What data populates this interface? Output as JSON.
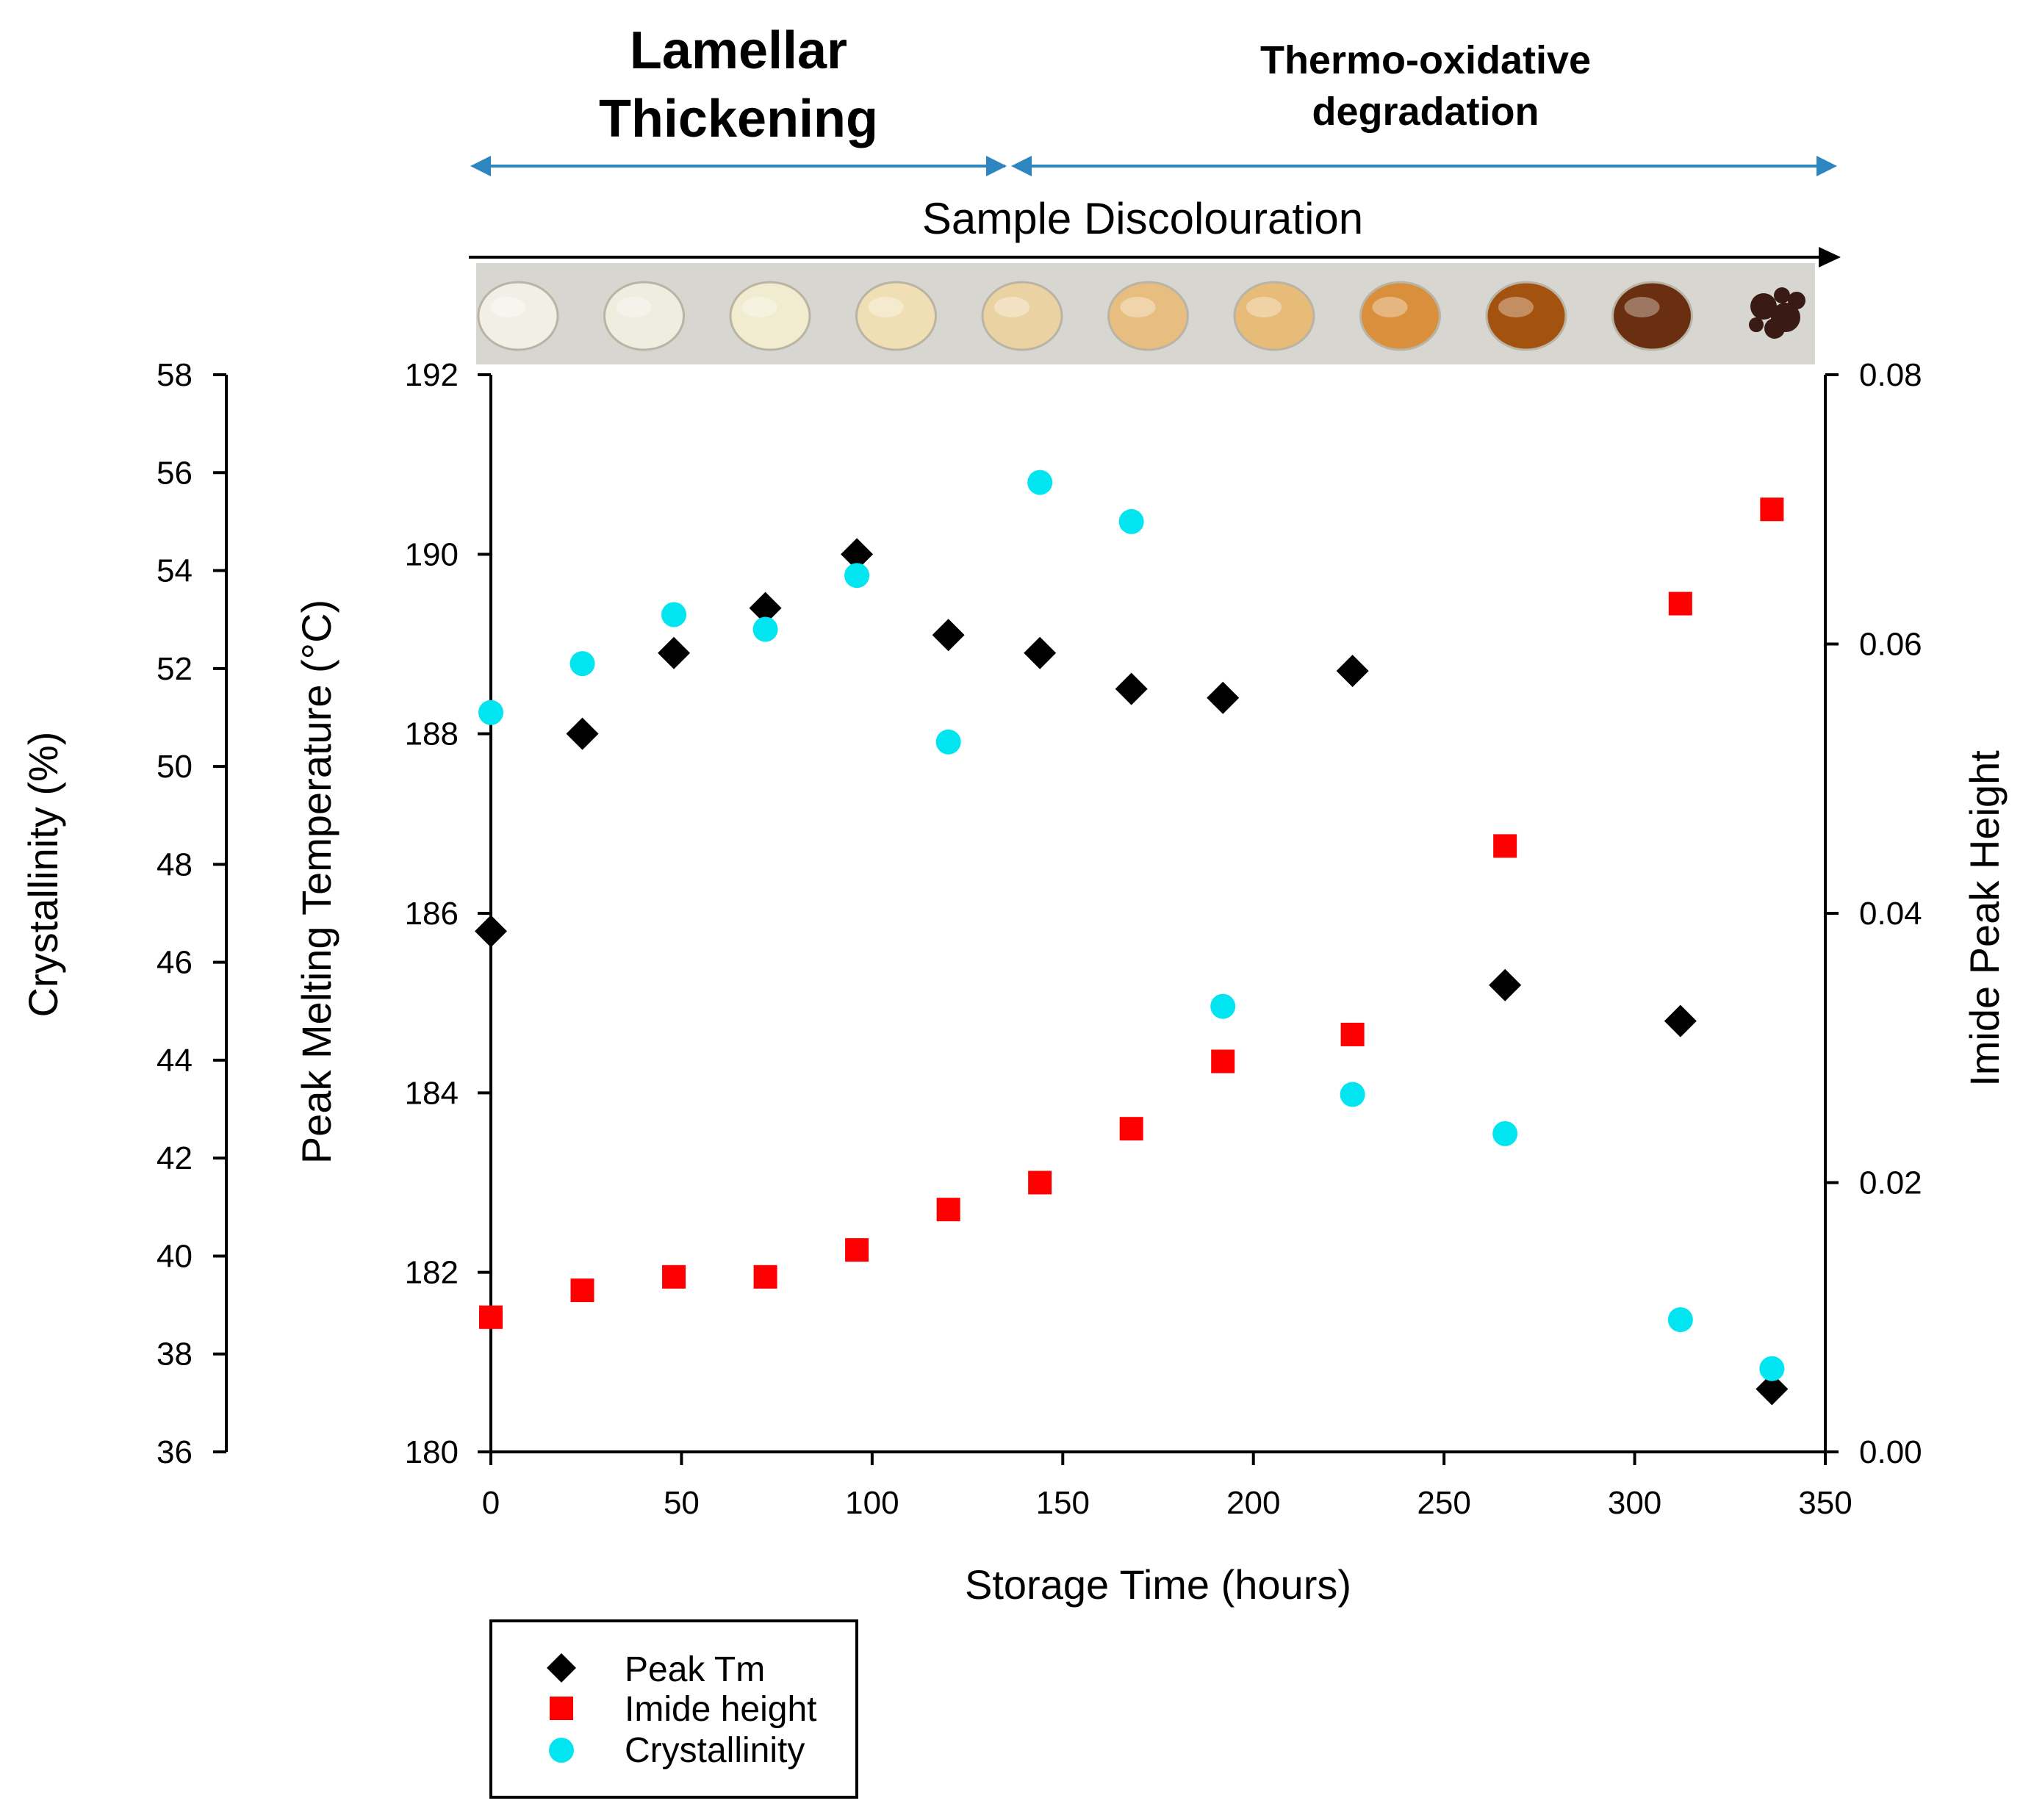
{
  "chart_data": {
    "type": "scatter",
    "x_axis": {
      "label": "Storage Time (hours)",
      "range": [
        0,
        350
      ],
      "ticks": [
        0,
        50,
        100,
        150,
        200,
        250,
        300,
        350
      ]
    },
    "y_axes": {
      "crystallinity": {
        "label": "Crystallinity (%)",
        "range": [
          36,
          58
        ],
        "ticks": [
          36,
          38,
          40,
          42,
          44,
          46,
          48,
          50,
          52,
          54,
          56,
          58
        ]
      },
      "peak_tm": {
        "label": "Peak Melting Temperature (°C)",
        "range": [
          180,
          192
        ],
        "ticks": [
          180,
          182,
          184,
          186,
          188,
          190,
          192
        ]
      },
      "imide": {
        "label": "Imide Peak Height",
        "range": [
          0,
          0.08
        ],
        "ticks": [
          "0.00",
          "0.02",
          "0.04",
          "0.06",
          "0.08"
        ]
      }
    },
    "series": [
      {
        "name": "Peak Tm",
        "axis": "peak_tm",
        "marker": "diamond",
        "color": "#000000",
        "points": [
          [
            0,
            185.8
          ],
          [
            24,
            188.0
          ],
          [
            48,
            188.9
          ],
          [
            72,
            189.4
          ],
          [
            96,
            190.0
          ],
          [
            120,
            189.1
          ],
          [
            144,
            188.9
          ],
          [
            168,
            188.5
          ],
          [
            192,
            188.4
          ],
          [
            226,
            188.7
          ],
          [
            266,
            185.2
          ],
          [
            312,
            184.8
          ],
          [
            336,
            180.7
          ]
        ]
      },
      {
        "name": "Imide height",
        "axis": "imide",
        "marker": "square",
        "color": "#ff0000",
        "points": [
          [
            0,
            0.01
          ],
          [
            24,
            0.012
          ],
          [
            48,
            0.013
          ],
          [
            72,
            0.013
          ],
          [
            96,
            0.015
          ],
          [
            120,
            0.018
          ],
          [
            144,
            0.02
          ],
          [
            168,
            0.024
          ],
          [
            192,
            0.029
          ],
          [
            226,
            0.031
          ],
          [
            266,
            0.045
          ],
          [
            312,
            0.063
          ],
          [
            336,
            0.07
          ]
        ]
      },
      {
        "name": "Crystallinity",
        "axis": "crystallinity",
        "marker": "circle",
        "color": "#00e5f0",
        "points": [
          [
            0,
            51.1
          ],
          [
            24,
            52.1
          ],
          [
            48,
            53.1
          ],
          [
            72,
            52.8
          ],
          [
            96,
            53.9
          ],
          [
            120,
            50.5
          ],
          [
            144,
            55.8
          ],
          [
            168,
            55.0
          ],
          [
            192,
            45.1
          ],
          [
            226,
            43.3
          ],
          [
            266,
            42.5
          ],
          [
            312,
            38.7
          ],
          [
            336,
            37.7
          ]
        ]
      }
    ],
    "legend": {
      "position": "bottom-left",
      "entries": [
        "Peak Tm",
        "Imide height",
        "Crystallinity"
      ]
    },
    "annotations": {
      "phase1": [
        "Lamellar",
        "Thickening"
      ],
      "phase2": [
        "Thermo-oxidative",
        "degradation"
      ],
      "banner": "Sample Discolouration"
    },
    "sample_colors": [
      "#f2f0e6",
      "#efece0",
      "#f1ebcf",
      "#f0dfb4",
      "#ebd2a2",
      "#e8be80",
      "#e6bc78",
      "#d98f3c",
      "#a4520f",
      "#6a2e10",
      "#3a1a14"
    ]
  }
}
